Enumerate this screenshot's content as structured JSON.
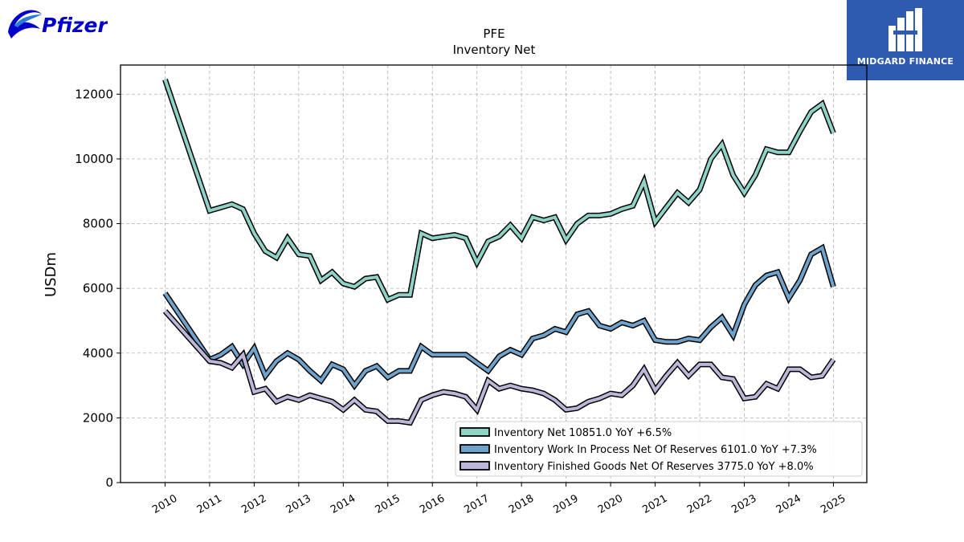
{
  "branding": {
    "company_logo_text": "Pfizer",
    "partner_logo_text": "MIDGARD FINANCE"
  },
  "chart_data": {
    "type": "line",
    "title": "PFE",
    "subtitle": "Inventory Net",
    "xlabel": "",
    "ylabel": "USDm",
    "ylim": [
      0,
      12900
    ],
    "xlim": [
      2009.0,
      2025.75
    ],
    "yticks": [
      0,
      2000,
      4000,
      6000,
      8000,
      10000,
      12000
    ],
    "xticks": [
      "2010",
      "2011",
      "2012",
      "2013",
      "2014",
      "2015",
      "2016",
      "2017",
      "2018",
      "2019",
      "2020",
      "2021",
      "2022",
      "2023",
      "2024",
      "2025"
    ],
    "grid": true,
    "legend_position": "bottom-right",
    "x": [
      2010.0,
      2011.0,
      2011.25,
      2011.5,
      2011.75,
      2012.0,
      2012.25,
      2012.5,
      2012.75,
      2013.0,
      2013.25,
      2013.5,
      2013.75,
      2014.0,
      2014.25,
      2014.5,
      2014.75,
      2015.0,
      2015.25,
      2015.5,
      2015.75,
      2016.0,
      2016.25,
      2016.5,
      2016.75,
      2017.0,
      2017.25,
      2017.5,
      2017.75,
      2018.0,
      2018.25,
      2018.5,
      2018.75,
      2019.0,
      2019.25,
      2019.5,
      2019.75,
      2020.0,
      2020.25,
      2020.5,
      2020.75,
      2021.0,
      2021.25,
      2021.5,
      2021.75,
      2022.0,
      2022.25,
      2022.5,
      2022.75,
      2023.0,
      2023.25,
      2023.5,
      2023.75,
      2024.0,
      2024.25,
      2024.5,
      2024.75,
      2025.0
    ],
    "series": [
      {
        "name": "Inventory Net  10851.0 YoY +6.5%",
        "color": "#8dd3c7",
        "values": [
          12450,
          8400,
          8500,
          8600,
          8450,
          7700,
          7150,
          6950,
          7550,
          7050,
          7000,
          6250,
          6500,
          6150,
          6050,
          6300,
          6350,
          5650,
          5800,
          5800,
          7700,
          7550,
          7600,
          7650,
          7550,
          6800,
          7450,
          7600,
          7950,
          7550,
          8200,
          8100,
          8200,
          7500,
          8000,
          8250,
          8250,
          8300,
          8450,
          8550,
          9300,
          8050,
          8500,
          8950,
          8650,
          9050,
          10000,
          10450,
          9500,
          8950,
          9500,
          10300,
          10200,
          10200,
          10850,
          11450,
          11700,
          10800
        ]
      },
      {
        "name": "Inventory Work In Process Net Of Reserves  6101.0 YoY +7.3%",
        "color": "#6fa3cc",
        "values": [
          5850,
          3800,
          3950,
          4200,
          3650,
          4150,
          3300,
          3750,
          4000,
          3800,
          3450,
          3150,
          3650,
          3500,
          3000,
          3450,
          3600,
          3250,
          3450,
          3450,
          4200,
          3950,
          3950,
          3950,
          3950,
          3700,
          3450,
          3900,
          4100,
          3950,
          4450,
          4550,
          4750,
          4650,
          5200,
          5300,
          4850,
          4750,
          4950,
          4850,
          5000,
          4400,
          4350,
          4350,
          4450,
          4400,
          4800,
          5100,
          4550,
          5500,
          6100,
          6400,
          6500,
          5700,
          6250,
          7050,
          7250,
          6050
        ]
      },
      {
        "name": "Inventory Finished Goods Net Of Reserves  3775.0 YoY +8.0%",
        "color": "#bdb6d8",
        "values": [
          5300,
          3750,
          3700,
          3550,
          3950,
          2800,
          2900,
          2500,
          2650,
          2550,
          2700,
          2600,
          2500,
          2250,
          2550,
          2250,
          2200,
          1900,
          1900,
          1850,
          2550,
          2700,
          2800,
          2750,
          2650,
          2250,
          3150,
          2900,
          3000,
          2900,
          2850,
          2750,
          2550,
          2250,
          2300,
          2500,
          2600,
          2750,
          2700,
          3000,
          3500,
          2850,
          3300,
          3700,
          3300,
          3650,
          3650,
          3250,
          3200,
          2600,
          2650,
          3050,
          2900,
          3500,
          3500,
          3250,
          3300,
          3800
        ]
      }
    ]
  }
}
